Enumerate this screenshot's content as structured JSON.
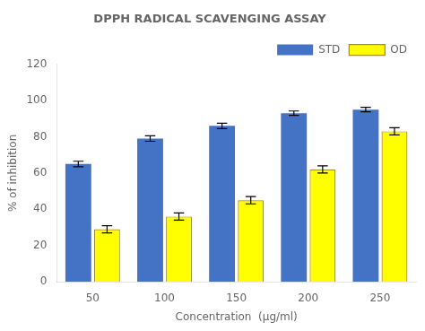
{
  "chart_data": {
    "type": "bar",
    "title": "DPPH RADICAL SCAVENGING ASSAY",
    "xlabel": "Concentration  (μg/ml)",
    "ylabel": "% of inhibition",
    "categories": [
      "50",
      "100",
      "150",
      "200",
      "250"
    ],
    "series": [
      {
        "name": "STD",
        "color": "#4472c4",
        "values": [
          65,
          79,
          86,
          93,
          95
        ],
        "errors": [
          1.5,
          1.5,
          1.5,
          1.2,
          1.2
        ]
      },
      {
        "name": "OD",
        "color": "#ffff00",
        "values": [
          29,
          36,
          45,
          62,
          83
        ],
        "errors": [
          2.0,
          2.0,
          2.0,
          2.0,
          2.0
        ]
      }
    ],
    "ylim": [
      0,
      120
    ],
    "yticks": [
      0,
      20,
      40,
      60,
      80,
      100,
      120
    ],
    "grid": false,
    "legend": "upper right"
  }
}
